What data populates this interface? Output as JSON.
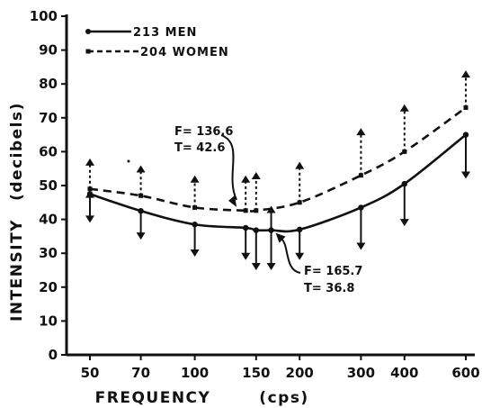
{
  "chart_data": {
    "type": "line",
    "xlabel": "FREQUENCY",
    "xunit": "(cps)",
    "ylabel": "INTENSITY",
    "yunit": "(decibels)",
    "ylim": [
      0,
      100
    ],
    "y_ticks": [
      0,
      10,
      20,
      30,
      40,
      50,
      60,
      70,
      80,
      90,
      100
    ],
    "x_scale": "log",
    "x_ticks": [
      50,
      70,
      100,
      150,
      200,
      300,
      400,
      600
    ],
    "series": [
      {
        "name": "213 MEN",
        "style": "solid",
        "marker": "dot",
        "color": "#111111",
        "points": [
          {
            "x": 50,
            "y": 47.5,
            "hi": 48.5,
            "lo": 39
          },
          {
            "x": 70,
            "y": 42.5,
            "hi": 42.5,
            "lo": 34
          },
          {
            "x": 100,
            "y": 38.5,
            "hi": 38.5,
            "lo": 29
          },
          {
            "x": 140,
            "y": 37.5,
            "hi": 37.5,
            "lo": 28
          },
          {
            "x": 150,
            "y": 36.8,
            "hi": 36.8,
            "lo": 25
          },
          {
            "x": 165.7,
            "y": 36.8,
            "hi": 44,
            "lo": 25
          },
          {
            "x": 200,
            "y": 37,
            "hi": 37,
            "lo": 28
          },
          {
            "x": 300,
            "y": 43.5,
            "hi": 43.5,
            "lo": 31
          },
          {
            "x": 400,
            "y": 50.5,
            "hi": 50.5,
            "lo": 38
          },
          {
            "x": 600,
            "y": 65,
            "hi": 65,
            "lo": 52
          }
        ]
      },
      {
        "name": "204 WOMEN",
        "style": "dashed",
        "marker": "tick",
        "color": "#111111",
        "points": [
          {
            "x": 50,
            "y": 49,
            "hi": 58,
            "lo": 49
          },
          {
            "x": 70,
            "y": 47,
            "hi": 56,
            "lo": 47
          },
          {
            "x": 100,
            "y": 43.5,
            "hi": 53,
            "lo": 43.5
          },
          {
            "x": 140,
            "y": 42.6,
            "hi": 53,
            "lo": 42.6
          },
          {
            "x": 150,
            "y": 42.6,
            "hi": 54,
            "lo": 42.6
          },
          {
            "x": 200,
            "y": 45,
            "hi": 57,
            "lo": 45
          },
          {
            "x": 300,
            "y": 53,
            "hi": 67,
            "lo": 53
          },
          {
            "x": 400,
            "y": 60,
            "hi": 74,
            "lo": 60
          },
          {
            "x": 600,
            "y": 73,
            "hi": 84,
            "lo": 73
          }
        ]
      }
    ],
    "annotations": [
      {
        "line1": "F= 136.6",
        "line2": "T= 42.6",
        "points_to_series": "204 WOMEN",
        "x": 136.6,
        "y": 42.6
      },
      {
        "line1": "F= 165.7",
        "line2": "T= 36.8",
        "points_to_series": "213 MEN",
        "x": 165.7,
        "y": 36.8
      }
    ],
    "legend": {
      "position": "top-left",
      "entries": [
        "213 MEN",
        "204 WOMEN"
      ]
    },
    "grid": false
  }
}
